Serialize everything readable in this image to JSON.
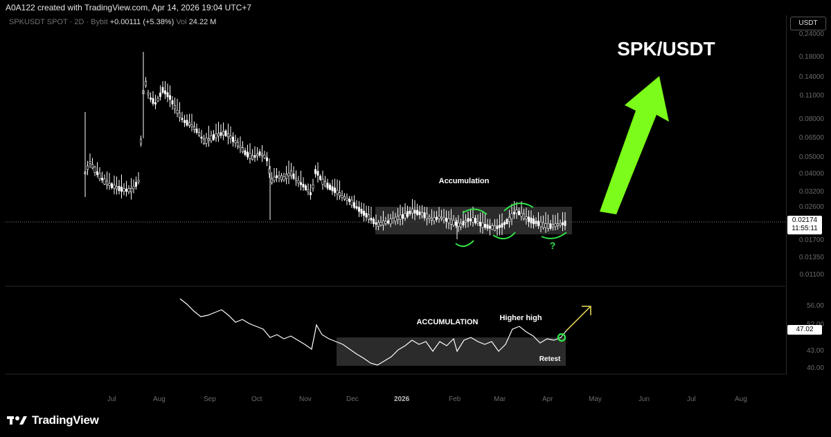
{
  "header": {
    "credit": "A0A122 created with TradingView.com, Apr 14, 2026 19:04 UTC+7",
    "symbol": "SPKUSDT SPOT · 2D · Bybit",
    "change": "+0.00111 (+5.38%)",
    "volume_label": "Vol",
    "volume_value": "24.22 M"
  },
  "currency_button": "USDT",
  "price_axis": [
    "0.24000",
    "0.18000",
    "0.14000",
    "0.11000",
    "0.08000",
    "0.06500",
    "0.05000",
    "0.04000",
    "0.03200",
    "0.02600",
    "0.01700",
    "0.01350",
    "0.01100"
  ],
  "price_tag": {
    "price": "0.02174",
    "countdown": "11:55:11"
  },
  "oscillator_axis": [
    "56.00",
    "52.00",
    "43.00",
    "40.00"
  ],
  "oscillator_tag": "47.02",
  "time_axis": [
    "Jul",
    "Aug",
    "Sep",
    "Oct",
    "Nov",
    "Dec",
    "2026",
    "Feb",
    "Mar",
    "Apr",
    "May",
    "Jun",
    "Jul",
    "Aug"
  ],
  "annotations": {
    "title": "SPK/USDT",
    "accumulation_price": "Accumulation",
    "question": "?",
    "accumulation_osc": "ACCUMULATION",
    "higher_high": "Higher high",
    "retest": "Retest"
  },
  "colors": {
    "arrow_green": "#7cfc1a",
    "ellipse_green": "#32e04a",
    "arrow_yellow": "#f2e35a",
    "candles": "#ffffff"
  },
  "logo": {
    "icon": "tradingview-logo-icon",
    "text": "TradingView"
  }
}
